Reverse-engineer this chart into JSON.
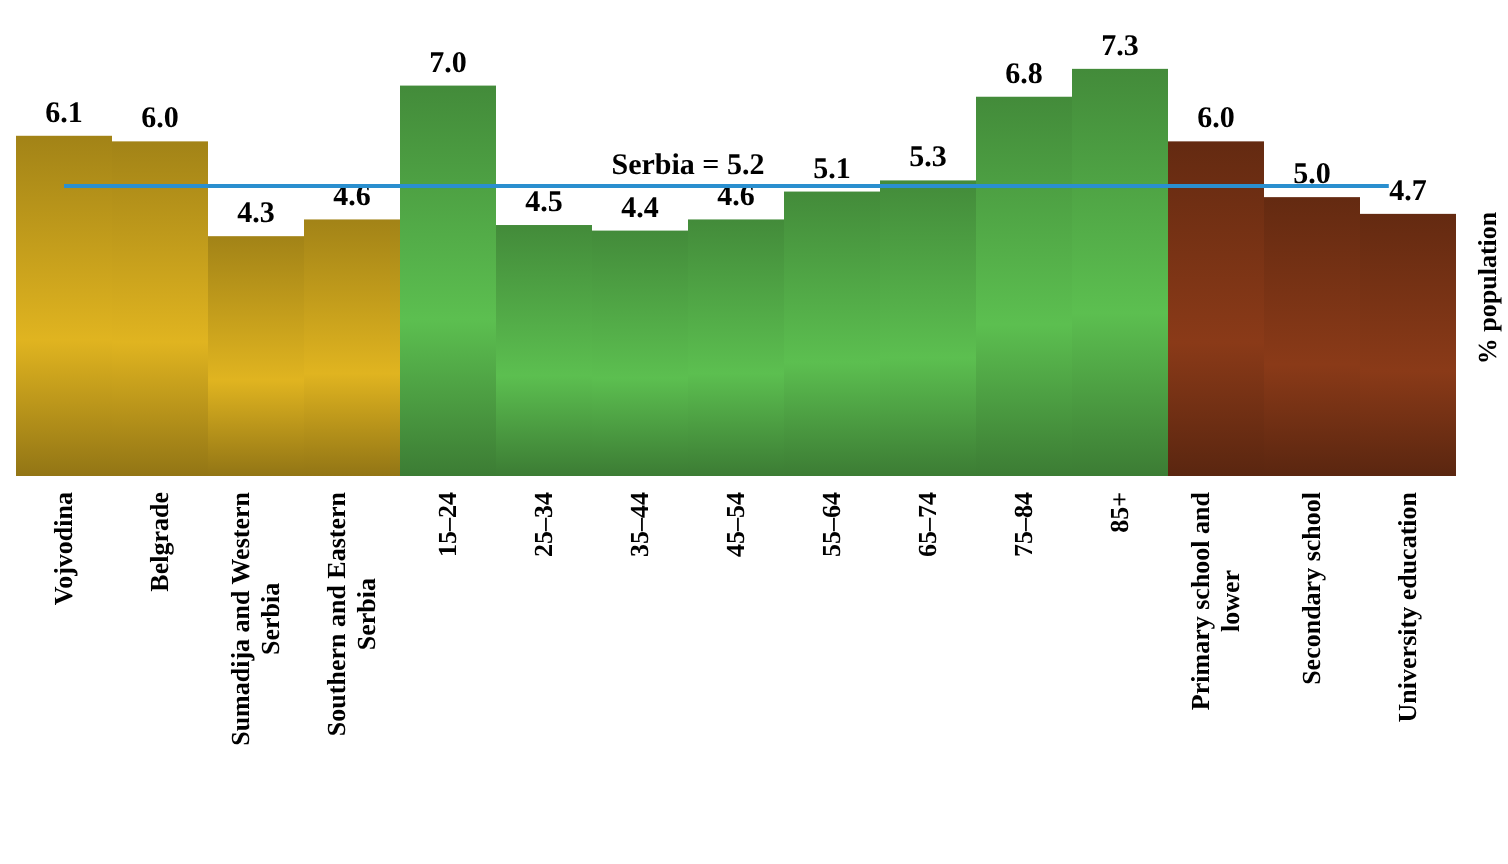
{
  "chart_data": {
    "type": "bar",
    "ylabel": "% population",
    "categories": [
      "Vojvodina",
      "Belgrade",
      "Sumadija and Western Serbia",
      "Southern and Eastern Serbia",
      "15–24",
      "25–34",
      "35–44",
      "45–54",
      "55–64",
      "65–74",
      "75–84",
      "85+",
      "Primary school and lower",
      "Secondary school",
      "University education"
    ],
    "values": [
      6.1,
      6.0,
      4.3,
      4.6,
      7.0,
      4.5,
      4.4,
      4.6,
      5.1,
      5.3,
      6.8,
      7.3,
      6.0,
      5.0,
      4.7
    ],
    "colors": [
      "#e0b420",
      "#e0b420",
      "#e0b420",
      "#e0b420",
      "#5cbf50",
      "#5cbf50",
      "#5cbf50",
      "#5cbf50",
      "#5cbf50",
      "#5cbf50",
      "#5cbf50",
      "#5cbf50",
      "#8a3a18",
      "#8a3a18",
      "#8a3a18"
    ],
    "value_labels": [
      "6.1",
      "6.0",
      "4.3",
      "4.6",
      "7.0",
      "4.5",
      "4.4",
      "4.6",
      "5.1",
      "5.3",
      "6.8",
      "7.3",
      "6.0",
      "5.0",
      "4.7"
    ],
    "ref_lines": [
      {
        "axis": "y",
        "value": 5.2,
        "label": "Serbia = 5.2",
        "color": "#2a8fcf"
      }
    ]
  }
}
